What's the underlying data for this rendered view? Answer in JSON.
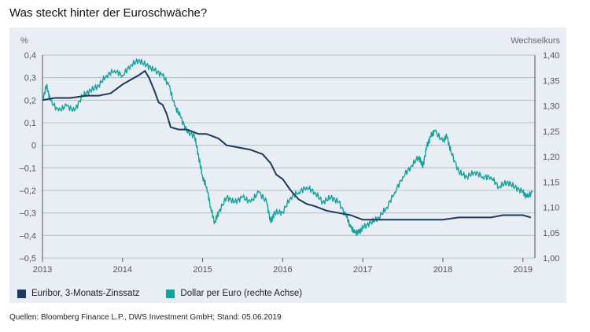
{
  "heading": "Was steckt hinter der Euroschwäche?",
  "source": "Quellen: Bloomberg Finance L.P., DWS Investment GmbH; Stand: 05.06.2019",
  "chart_data": {
    "type": "line",
    "left_axis": {
      "unit": "%",
      "ylim": [
        -0.5,
        0.4
      ],
      "ticks": [
        {
          "v": 0.4,
          "label": "0,4"
        },
        {
          "v": 0.3,
          "label": "0,3"
        },
        {
          "v": 0.2,
          "label": "0,2"
        },
        {
          "v": 0.1,
          "label": "0,1"
        },
        {
          "v": 0.0,
          "label": "0"
        },
        {
          "v": -0.1,
          "label": "–0,1"
        },
        {
          "v": -0.2,
          "label": "–0,2"
        },
        {
          "v": -0.3,
          "label": "–0,3"
        },
        {
          "v": -0.4,
          "label": "–0,4"
        },
        {
          "v": -0.5,
          "label": "–0,5"
        }
      ]
    },
    "right_axis": {
      "unit": "Wechselkurs",
      "ylim": [
        1.0,
        1.4
      ],
      "ticks": [
        {
          "v": 1.4,
          "label": "1,40"
        },
        {
          "v": 1.35,
          "label": "1,35"
        },
        {
          "v": 1.3,
          "label": "1,30"
        },
        {
          "v": 1.25,
          "label": "1,25"
        },
        {
          "v": 1.2,
          "label": "1,20"
        },
        {
          "v": 1.15,
          "label": "1,15"
        },
        {
          "v": 1.1,
          "label": "1,10"
        },
        {
          "v": 1.05,
          "label": "1,05"
        },
        {
          "v": 1.0,
          "label": "1,00"
        }
      ]
    },
    "x_axis": {
      "xlim": [
        2013.0,
        2019.15
      ],
      "ticks": [
        {
          "v": 2013,
          "label": "2013"
        },
        {
          "v": 2014,
          "label": "2014"
        },
        {
          "v": 2015,
          "label": "2015"
        },
        {
          "v": 2016,
          "label": "2016"
        },
        {
          "v": 2017,
          "label": "2017"
        },
        {
          "v": 2018,
          "label": "2018"
        },
        {
          "v": 2019,
          "label": "2019"
        }
      ]
    },
    "grid": "horizontal",
    "series": [
      {
        "name": "Euribor, 3-Monats-Zinssatz",
        "axis": "left",
        "color": "#1b3a5c",
        "points": [
          [
            2013.0,
            0.2
          ],
          [
            2013.15,
            0.21
          ],
          [
            2013.35,
            0.21
          ],
          [
            2013.55,
            0.22
          ],
          [
            2013.7,
            0.22
          ],
          [
            2013.85,
            0.23
          ],
          [
            2014.0,
            0.27
          ],
          [
            2014.1,
            0.29
          ],
          [
            2014.2,
            0.31
          ],
          [
            2014.28,
            0.33
          ],
          [
            2014.33,
            0.3
          ],
          [
            2014.4,
            0.24
          ],
          [
            2014.45,
            0.19
          ],
          [
            2014.5,
            0.18
          ],
          [
            2014.55,
            0.14
          ],
          [
            2014.6,
            0.08
          ],
          [
            2014.7,
            0.07
          ],
          [
            2014.8,
            0.07
          ],
          [
            2014.95,
            0.05
          ],
          [
            2015.05,
            0.05
          ],
          [
            2015.2,
            0.03
          ],
          [
            2015.3,
            0.0
          ],
          [
            2015.45,
            -0.01
          ],
          [
            2015.6,
            -0.02
          ],
          [
            2015.75,
            -0.04
          ],
          [
            2015.85,
            -0.08
          ],
          [
            2015.92,
            -0.13
          ],
          [
            2016.0,
            -0.15
          ],
          [
            2016.1,
            -0.2
          ],
          [
            2016.2,
            -0.24
          ],
          [
            2016.3,
            -0.26
          ],
          [
            2016.4,
            -0.27
          ],
          [
            2016.55,
            -0.29
          ],
          [
            2016.7,
            -0.3
          ],
          [
            2016.85,
            -0.31
          ],
          [
            2017.0,
            -0.33
          ],
          [
            2017.2,
            -0.33
          ],
          [
            2017.4,
            -0.33
          ],
          [
            2017.6,
            -0.33
          ],
          [
            2017.8,
            -0.33
          ],
          [
            2018.0,
            -0.33
          ],
          [
            2018.2,
            -0.32
          ],
          [
            2018.4,
            -0.32
          ],
          [
            2018.6,
            -0.32
          ],
          [
            2018.75,
            -0.31
          ],
          [
            2018.9,
            -0.31
          ],
          [
            2019.0,
            -0.31
          ],
          [
            2019.1,
            -0.32
          ]
        ]
      },
      {
        "name": "Dollar per Euro (rechte Achse)",
        "axis": "right",
        "color": "#12a39a",
        "points": [
          [
            2013.0,
            1.31
          ],
          [
            2013.05,
            1.34
          ],
          [
            2013.1,
            1.31
          ],
          [
            2013.2,
            1.29
          ],
          [
            2013.3,
            1.3
          ],
          [
            2013.4,
            1.29
          ],
          [
            2013.5,
            1.32
          ],
          [
            2013.6,
            1.33
          ],
          [
            2013.7,
            1.34
          ],
          [
            2013.8,
            1.36
          ],
          [
            2013.9,
            1.37
          ],
          [
            2014.0,
            1.36
          ],
          [
            2014.1,
            1.38
          ],
          [
            2014.2,
            1.39
          ],
          [
            2014.3,
            1.38
          ],
          [
            2014.4,
            1.37
          ],
          [
            2014.5,
            1.36
          ],
          [
            2014.58,
            1.34
          ],
          [
            2014.65,
            1.3
          ],
          [
            2014.72,
            1.28
          ],
          [
            2014.8,
            1.25
          ],
          [
            2014.9,
            1.24
          ],
          [
            2014.95,
            1.2
          ],
          [
            2015.0,
            1.16
          ],
          [
            2015.05,
            1.14
          ],
          [
            2015.1,
            1.1
          ],
          [
            2015.15,
            1.07
          ],
          [
            2015.2,
            1.09
          ],
          [
            2015.3,
            1.12
          ],
          [
            2015.4,
            1.11
          ],
          [
            2015.5,
            1.12
          ],
          [
            2015.6,
            1.11
          ],
          [
            2015.7,
            1.13
          ],
          [
            2015.8,
            1.11
          ],
          [
            2015.85,
            1.07
          ],
          [
            2015.9,
            1.09
          ],
          [
            2016.0,
            1.09
          ],
          [
            2016.1,
            1.12
          ],
          [
            2016.2,
            1.13
          ],
          [
            2016.3,
            1.14
          ],
          [
            2016.4,
            1.13
          ],
          [
            2016.5,
            1.11
          ],
          [
            2016.6,
            1.12
          ],
          [
            2016.7,
            1.11
          ],
          [
            2016.8,
            1.08
          ],
          [
            2016.85,
            1.06
          ],
          [
            2016.9,
            1.05
          ],
          [
            2016.95,
            1.05
          ],
          [
            2017.0,
            1.06
          ],
          [
            2017.1,
            1.07
          ],
          [
            2017.2,
            1.08
          ],
          [
            2017.3,
            1.1
          ],
          [
            2017.4,
            1.13
          ],
          [
            2017.5,
            1.16
          ],
          [
            2017.6,
            1.18
          ],
          [
            2017.7,
            1.2
          ],
          [
            2017.75,
            1.18
          ],
          [
            2017.8,
            1.22
          ],
          [
            2017.85,
            1.24
          ],
          [
            2017.9,
            1.25
          ],
          [
            2018.0,
            1.23
          ],
          [
            2018.05,
            1.24
          ],
          [
            2018.1,
            1.21
          ],
          [
            2018.2,
            1.17
          ],
          [
            2018.3,
            1.16
          ],
          [
            2018.4,
            1.17
          ],
          [
            2018.5,
            1.16
          ],
          [
            2018.6,
            1.16
          ],
          [
            2018.7,
            1.14
          ],
          [
            2018.8,
            1.15
          ],
          [
            2018.9,
            1.14
          ],
          [
            2019.0,
            1.13
          ],
          [
            2019.05,
            1.12
          ],
          [
            2019.12,
            1.13
          ]
        ]
      }
    ]
  }
}
